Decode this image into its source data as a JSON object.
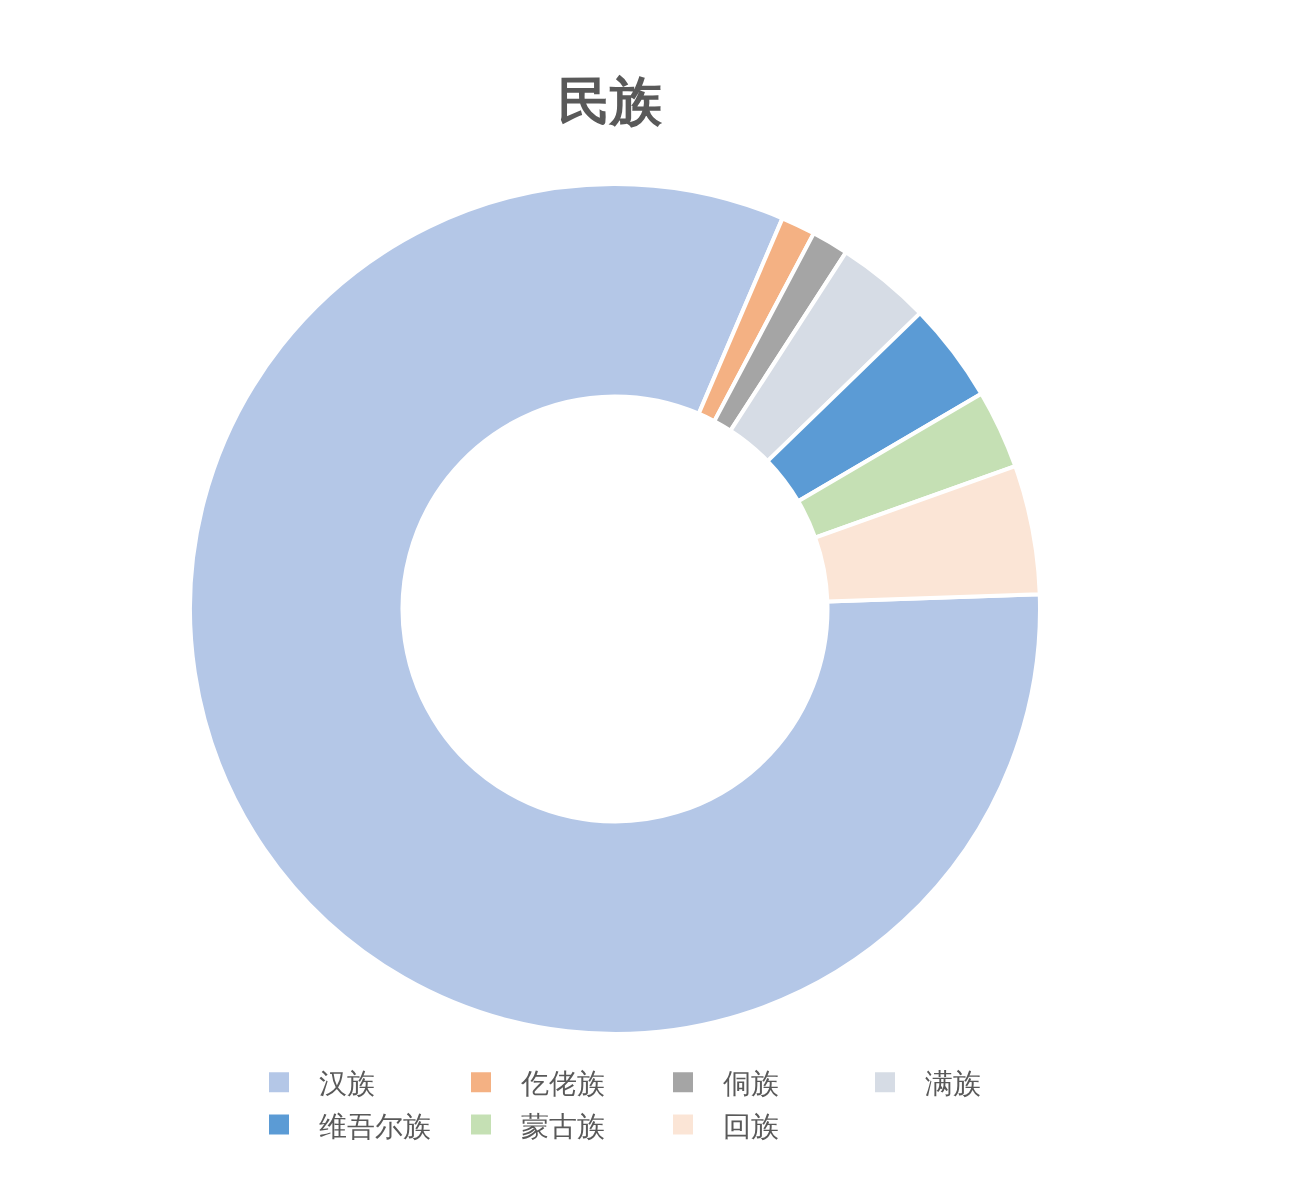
{
  "chart_data": {
    "type": "donut",
    "title": "民族",
    "categories": [
      "汉族",
      "仡佬族",
      "侗族",
      "满族",
      "维吾尔族",
      "蒙古族",
      "回族"
    ],
    "values": [
      82,
      1.3,
      1.4,
      3.6,
      3.8,
      3.0,
      4.9
    ],
    "colors": [
      "#b4c7e7",
      "#f4b183",
      "#a5a5a5",
      "#d6dce5",
      "#5b9bd5",
      "#c5e0b4",
      "#fbe5d6"
    ],
    "legend": "bottom"
  }
}
